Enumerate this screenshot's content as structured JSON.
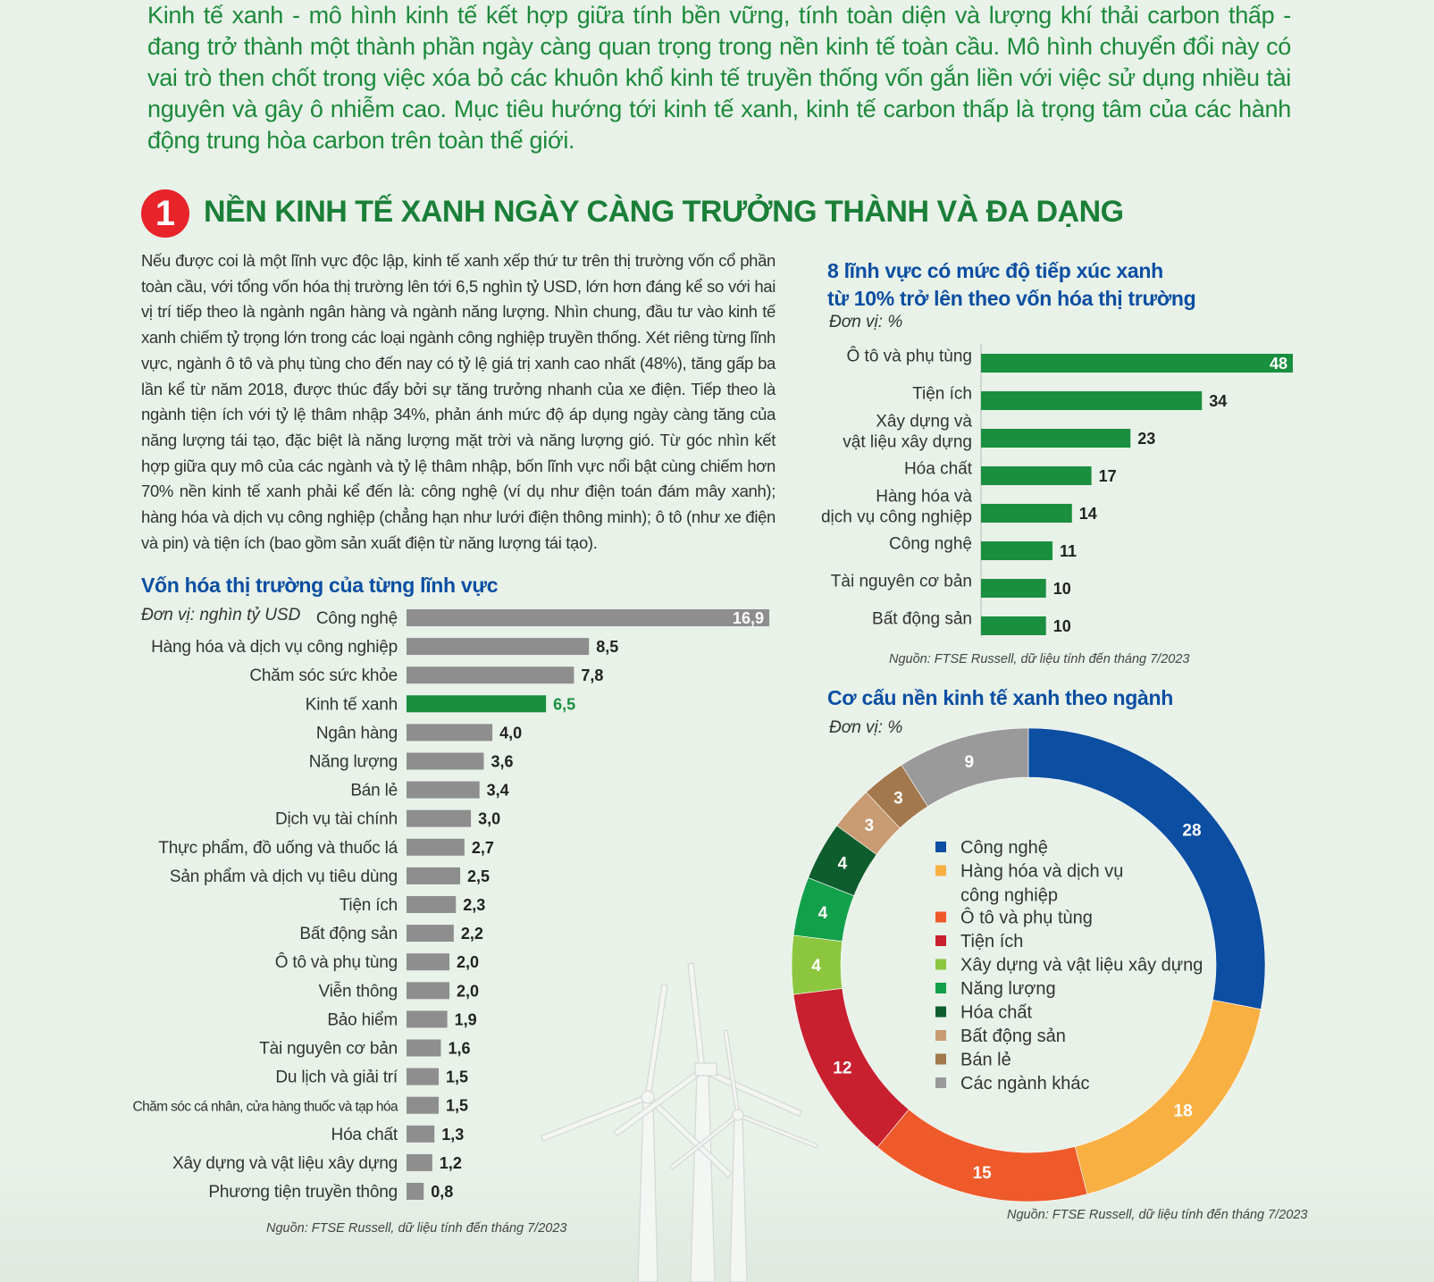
{
  "intro": "Kinh tế xanh - mô hình kinh tế kết hợp giữa tính bền vững, tính toàn diện và lượng khí thải carbon thấp - đang trở thành một thành phần ngày càng quan trọng trong nền kinh tế toàn cầu. Mô hình chuyển đổi này có vai trò then chốt trong việc xóa bỏ các khuôn khổ kinh tế truyền thống vốn gắn liền với việc sử dụng nhiều tài nguyên và gây ô nhiễm cao. Mục tiêu hướng tới kinh tế xanh, kinh tế carbon thấp là trọng tâm của các hành động trung hòa carbon trên toàn thế giới.",
  "section": {
    "number": "1",
    "title": "NỀN KINH TẾ XANH NGÀY CÀNG TRƯỞNG THÀNH VÀ ĐA DẠNG",
    "body": "Nếu được coi là một lĩnh vực độc lập, kinh tế xanh xếp thứ tư trên thị trường vốn cổ phần toàn cầu, với tổng vốn hóa thị trường lên tới 6,5 nghìn tỷ USD, lớn hơn đáng kể so với hai vị trí tiếp theo là ngành ngân hàng và ngành năng lượng. Nhìn chung, đầu tư vào kinh tế xanh chiếm tỷ trọng lớn trong các loại ngành công nghiệp truyền thống. Xét riêng từng lĩnh vực, ngành ô tô và phụ tùng cho đến nay có tỷ lệ giá trị xanh cao nhất (48%), tăng gấp ba lần kể từ năm 2018, được thúc đẩy bởi sự tăng trưởng nhanh của xe điện. Tiếp theo là ngành tiện ích với tỷ lệ thâm nhập 34%, phản ánh mức độ áp dụng ngày càng tăng của năng lượng tái tạo, đặc biệt là năng lượng mặt trời và năng lượng gió. Từ góc nhìn kết hợp giữa quy mô của các ngành và tỷ lệ thâm nhập, bốn lĩnh vực nổi bật cùng chiếm hơn 70% nền kinh tế xanh phải kể đến là: công nghệ (ví dụ như điện toán đám mây xanh); hàng hóa và dịch vụ công nghiệp (chẳng hạn như lưới điện thông minh); ô tô (như xe điện và pin) và tiện ích (bao gồm sản xuất điện từ năng lượng tái tạo)."
  },
  "colors": {
    "green": "#1a8f3f",
    "gray": "#8e8e8e",
    "title_blue": "#0b4ea2"
  },
  "chart_data": [
    {
      "type": "bar",
      "orientation": "horizontal",
      "title": "Vốn hóa thị trường của từng lĩnh vực",
      "unit": "Đơn vị: nghìn tỷ USD",
      "source": "Nguồn: FTSE Russell, dữ liệu tính đến tháng 7/2023",
      "categories": [
        "Công nghệ",
        "Hàng hóa và dịch vụ công nghiệp",
        "Chăm sóc sức khỏe",
        "Kinh tế xanh",
        "Ngân hàng",
        "Năng lượng",
        "Bán lẻ",
        "Dịch vụ tài chính",
        "Thực phẩm, đồ uống và thuốc lá",
        "Sản phẩm và dịch vụ tiêu dùng",
        "Tiện ích",
        "Bất động sản",
        "Ô tô và phụ tùng",
        "Viễn thông",
        "Bảo hiểm",
        "Tài nguyên cơ bản",
        "Du lịch và giải trí",
        "Chăm sóc cá nhân, cửa hàng thuốc và tạp hóa",
        "Hóa chất",
        "Xây dựng và vật liệu xây dựng",
        "Phương tiện truyền thông"
      ],
      "values": [
        16.9,
        8.5,
        7.8,
        6.5,
        4.0,
        3.6,
        3.4,
        3.0,
        2.7,
        2.5,
        2.3,
        2.2,
        2.0,
        2.0,
        1.9,
        1.6,
        1.5,
        1.5,
        1.3,
        1.2,
        0.8
      ],
      "value_labels": [
        "16,9",
        "8,5",
        "7,8",
        "6,5",
        "4,0",
        "3,6",
        "3,4",
        "3,0",
        "2,7",
        "2,5",
        "2,3",
        "2,2",
        "2,0",
        "2,0",
        "1,9",
        "1,6",
        "1,5",
        "1,5",
        "1,3",
        "1,2",
        "0,8"
      ],
      "highlight": "Kinh tế xanh"
    },
    {
      "type": "bar",
      "orientation": "horizontal",
      "title": "8 lĩnh vực có mức độ tiếp xúc xanh từ 10% trở lên theo vốn hóa thị trường",
      "title_lines": [
        "8 lĩnh vực có mức độ tiếp xúc xanh",
        "từ 10% trở lên theo vốn hóa thị trường"
      ],
      "unit": "Đơn vị: %",
      "source": "Nguồn: FTSE Russell, dữ liệu tính đến tháng 7/2023",
      "categories": [
        "Ô tô và phụ tùng",
        "Tiện ích",
        "Xây dựng và vật liệu xây dựng",
        "Hóa chất",
        "Hàng hóa và dịch vụ công nghiệp",
        "Công nghệ",
        "Tài nguyên cơ bản",
        "Bất động sản"
      ],
      "category_lines": [
        [
          "Ô tô và phụ tùng"
        ],
        [
          "Tiện ích"
        ],
        [
          "Xây dựng và",
          "vật liệu xây dựng"
        ],
        [
          "Hóa chất"
        ],
        [
          "Hàng hóa và",
          "dịch vụ công nghiệp"
        ],
        [
          "Công nghệ"
        ],
        [
          "Tài nguyên cơ bản"
        ],
        [
          "Bất động sản"
        ]
      ],
      "values": [
        48,
        34,
        23,
        17,
        14,
        11,
        10,
        10
      ]
    },
    {
      "type": "pie",
      "subtype": "donut",
      "title": "Cơ cấu nền kinh tế xanh theo ngành",
      "unit": "Đơn vị: %",
      "source": "Nguồn: FTSE Russell, dữ liệu tính đến tháng 7/2023",
      "series": [
        {
          "name": "Công nghệ",
          "value": 28,
          "color": "#0b4ea2"
        },
        {
          "name": "Hàng hóa và dịch vụ công nghiệp",
          "value": 18,
          "color": "#f8b043"
        },
        {
          "name": "Ô tô và phụ tùng",
          "value": 15,
          "color": "#ef5a2a"
        },
        {
          "name": "Tiện ích",
          "value": 12,
          "color": "#c8202f"
        },
        {
          "name": "Xây dựng và vật liệu xây dựng",
          "value": 4,
          "color": "#8cc63f"
        },
        {
          "name": "Năng lượng",
          "value": 4,
          "color": "#12a04a"
        },
        {
          "name": "Hóa chất",
          "value": 4,
          "color": "#0d5e2c"
        },
        {
          "name": "Bất động sản",
          "value": 3,
          "color": "#c99b72"
        },
        {
          "name": "Bán lẻ",
          "value": 3,
          "color": "#a3784c"
        },
        {
          "name": "Các ngành khác",
          "value": 9,
          "color": "#9a9a9a"
        }
      ],
      "legend_lines": [
        [
          "Công nghệ"
        ],
        [
          "Hàng hóa và dịch vụ",
          "công nghiệp"
        ],
        [
          "Ô tô và phụ tùng"
        ],
        [
          "Tiện ích"
        ],
        [
          "Xây dựng và vật liệu xây dựng"
        ],
        [
          "Năng lượng"
        ],
        [
          "Hóa chất"
        ],
        [
          "Bất động sản"
        ],
        [
          "Bán lẻ"
        ],
        [
          "Các ngành khác"
        ]
      ]
    }
  ]
}
